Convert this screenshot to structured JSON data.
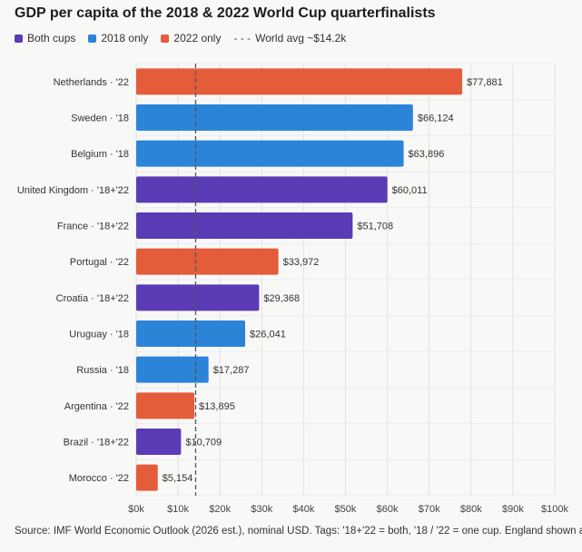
{
  "title": "GDP per capita of the 2018 & 2022 World Cup quarterfinalists",
  "legend": {
    "items": [
      {
        "label": "Both cups",
        "color": "#5b3bb5"
      },
      {
        "label": "2018 only",
        "color": "#2b84d8"
      },
      {
        "label": "2022 only",
        "color": "#e45c3a"
      }
    ],
    "avg_symbol": "- - -",
    "avg_label": "World avg ~$14.2k"
  },
  "footer": "Source: IMF World Economic Outlook (2026 est.), nominal USD. Tags: '18+'22 = both, '18 / '22 = one cup. England shown as UK.",
  "chart_data": {
    "type": "bar",
    "orientation": "horizontal",
    "categories": [
      "Netherlands · '22",
      "Sweden · '18",
      "Belgium · '18",
      "United Kingdom · '18+'22",
      "France · '18+'22",
      "Portugal · '22",
      "Croatia · '18+'22",
      "Uruguay · '18",
      "Russia · '18",
      "Argentina · '22",
      "Brazil · '18+'22",
      "Morocco · '22"
    ],
    "values": [
      77881,
      66124,
      63896,
      60011,
      51708,
      33972,
      29368,
      26041,
      17287,
      13895,
      10709,
      5154
    ],
    "value_labels": [
      "$77,881",
      "$66,124",
      "$63,896",
      "$60,011",
      "$51,708",
      "$33,972",
      "$29,368",
      "$26,041",
      "$17,287",
      "$13,895",
      "$10,709",
      "$5,154"
    ],
    "groups": [
      "2022 only",
      "2018 only",
      "2018 only",
      "Both cups",
      "Both cups",
      "2022 only",
      "Both cups",
      "2018 only",
      "2018 only",
      "2022 only",
      "Both cups",
      "2022 only"
    ],
    "xlim": [
      0,
      100000
    ],
    "x_ticks": [
      0,
      10000,
      20000,
      30000,
      40000,
      50000,
      60000,
      70000,
      80000,
      90000,
      100000
    ],
    "x_tick_labels": [
      "$0k",
      "$10k",
      "$20k",
      "$30k",
      "$40k",
      "$50k",
      "$60k",
      "$70k",
      "$80k",
      "$90k",
      "$100k"
    ],
    "reference_line": {
      "value": 14200,
      "style": "dashed"
    },
    "grid": true,
    "colors": {
      "Both cups": "#5b3bb5",
      "2018 only": "#2b84d8",
      "2022 only": "#e45c3a"
    }
  }
}
